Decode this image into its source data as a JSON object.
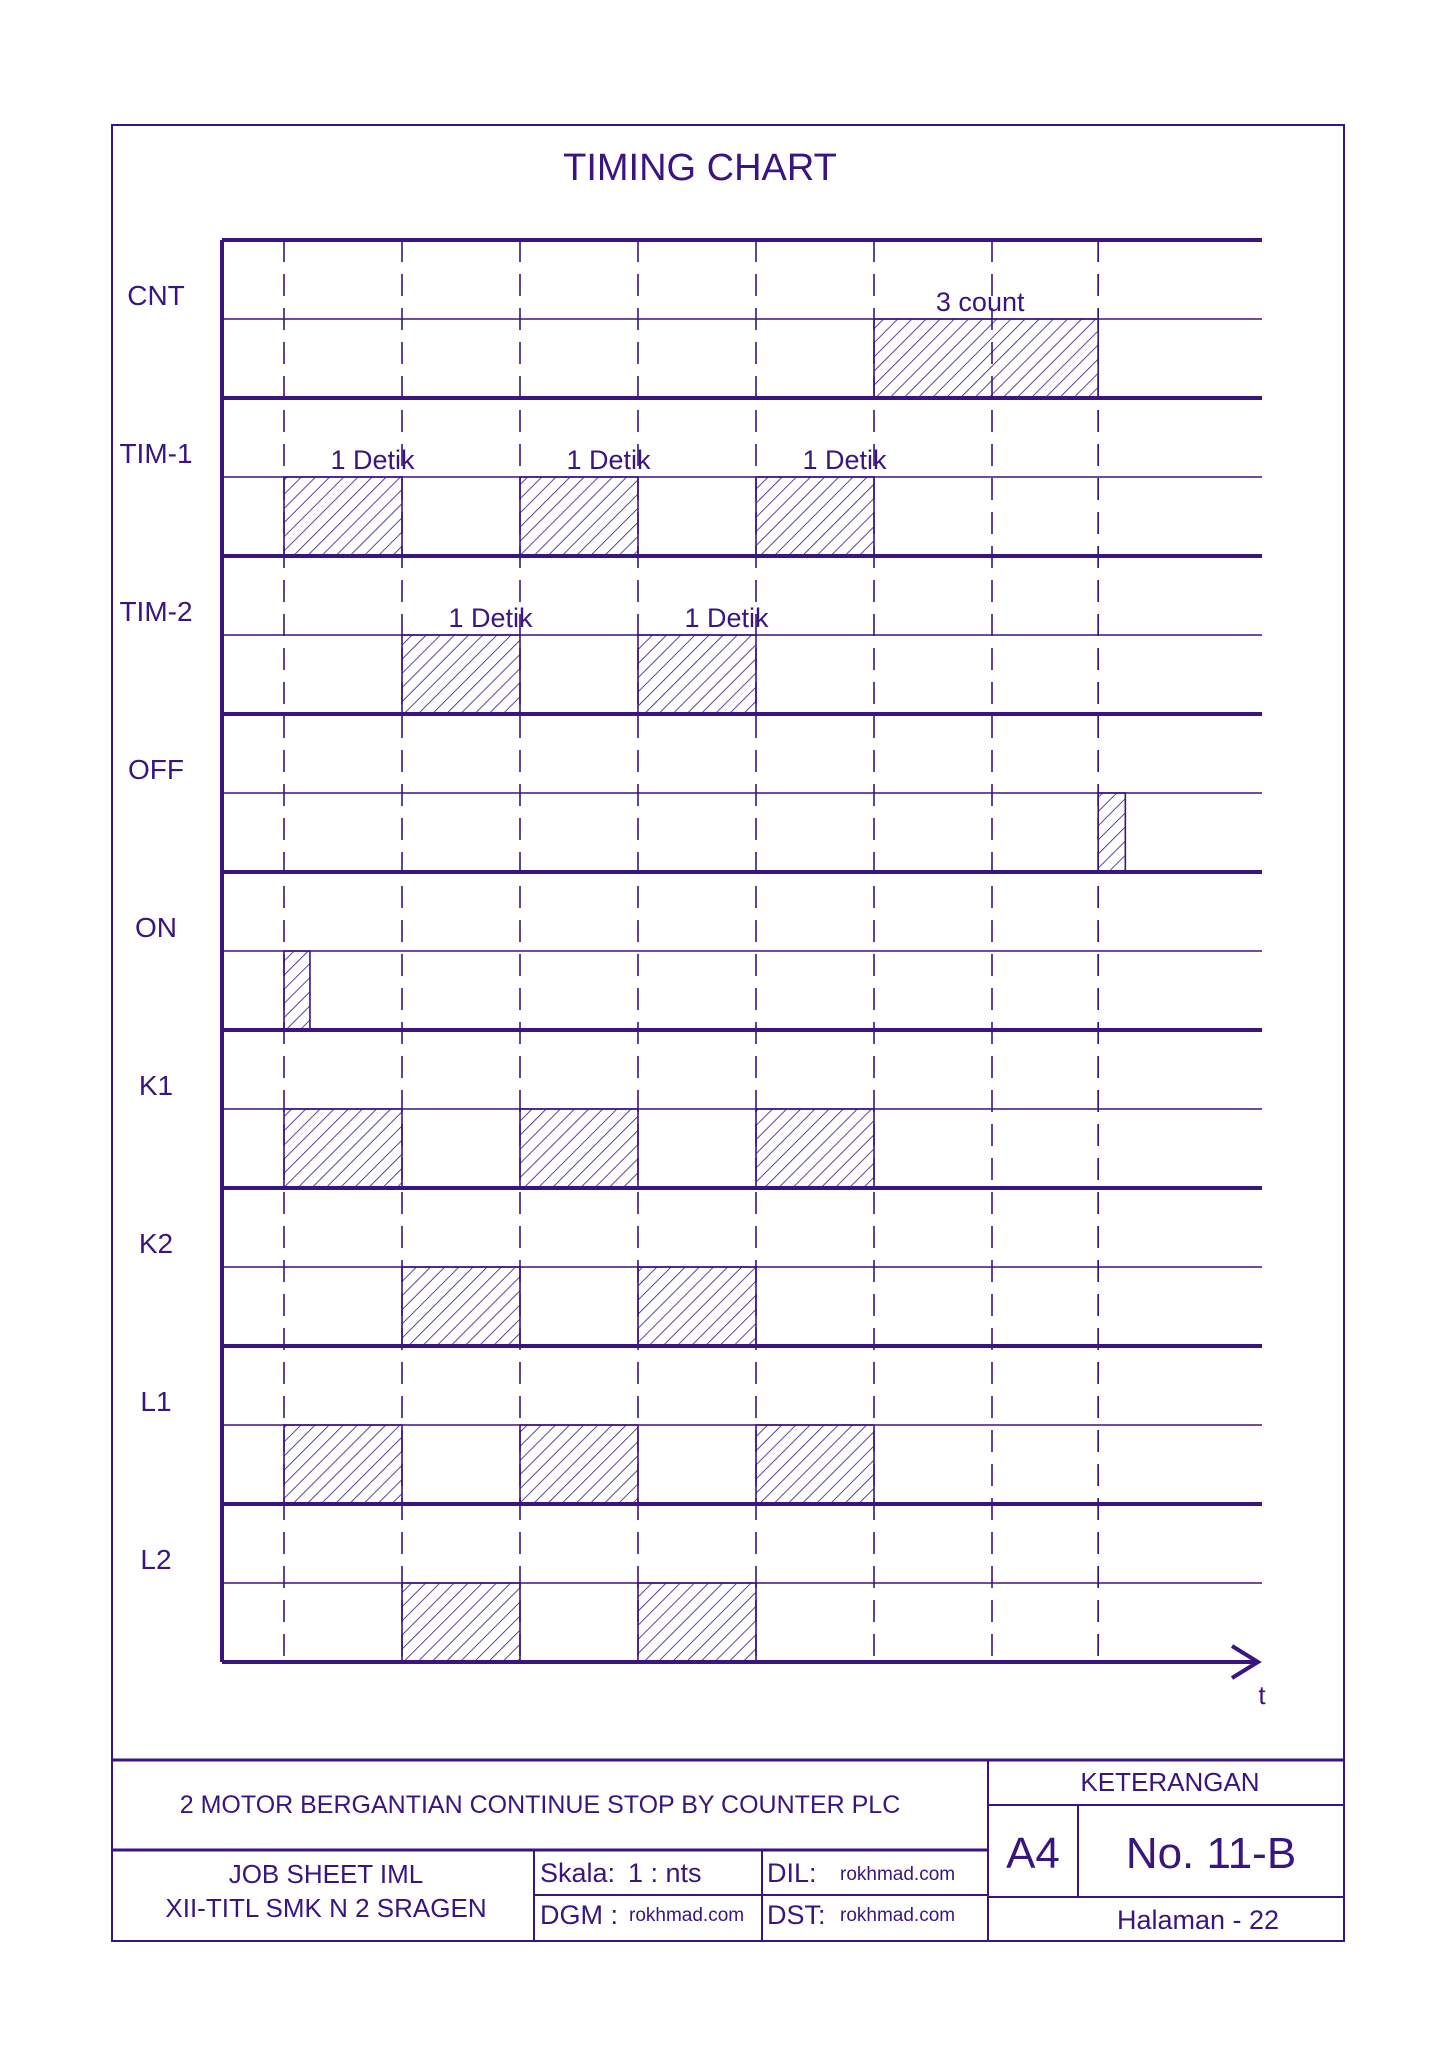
{
  "colors": {
    "ink": "#3a1480",
    "paper": "#ffffff"
  },
  "chart": {
    "title": "TIMING CHART",
    "time_axis_label": "t",
    "time_slots": 10,
    "signals": [
      {
        "name": "CNT",
        "pulses": [
          [
            5,
            6.9
          ]
        ],
        "labels": [
          {
            "text": "3 count",
            "at": 5.9
          }
        ]
      },
      {
        "name": "TIM-1",
        "pulses": [
          [
            0,
            1
          ],
          [
            2,
            3
          ],
          [
            4,
            5
          ]
        ],
        "labels": [
          {
            "text": "1 Detik",
            "at": 0.75
          },
          {
            "text": "1 Detik",
            "at": 2.75
          },
          {
            "text": "1 Detik",
            "at": 4.75
          }
        ]
      },
      {
        "name": "TIM-2",
        "pulses": [
          [
            1,
            2
          ],
          [
            3,
            4
          ]
        ],
        "labels": [
          {
            "text": "1 Detik",
            "at": 1.75
          },
          {
            "text": "1 Detik",
            "at": 3.75
          }
        ]
      },
      {
        "name": "OFF",
        "pulses": [
          [
            6.9,
            7.13
          ]
        ],
        "labels": []
      },
      {
        "name": "ON",
        "pulses": [
          [
            0,
            0.22
          ]
        ],
        "labels": []
      },
      {
        "name": "K1",
        "pulses": [
          [
            0,
            1
          ],
          [
            2,
            3
          ],
          [
            4,
            5
          ]
        ],
        "labels": []
      },
      {
        "name": "K2",
        "pulses": [
          [
            1,
            2
          ],
          [
            3,
            4
          ]
        ],
        "labels": []
      },
      {
        "name": "L1",
        "pulses": [
          [
            0,
            1
          ],
          [
            2,
            3
          ],
          [
            4,
            5
          ]
        ],
        "labels": []
      },
      {
        "name": "L2",
        "pulses": [
          [
            1,
            2
          ],
          [
            3,
            4
          ]
        ],
        "labels": []
      }
    ]
  },
  "title_block": {
    "description": "2 MOTOR BERGANTIAN CONTINUE STOP BY COUNTER  PLC",
    "job_sheet_line1": "JOB SHEET IML",
    "job_sheet_line2": "XII-TITL SMK N 2 SRAGEN",
    "skala_label": "Skala:",
    "skala_value": "1 : nts",
    "dil_label": "DIL:",
    "dil_value": "rokhmad.com",
    "dgm_label": "DGM :",
    "dgm_value": "rokhmad.com",
    "dst_label": "DST:",
    "dst_value": "rokhmad.com",
    "keterangan": "KETERANGAN",
    "paper_size": "A4",
    "sheet_number": "No. 11-B",
    "page": "Halaman - 22"
  }
}
